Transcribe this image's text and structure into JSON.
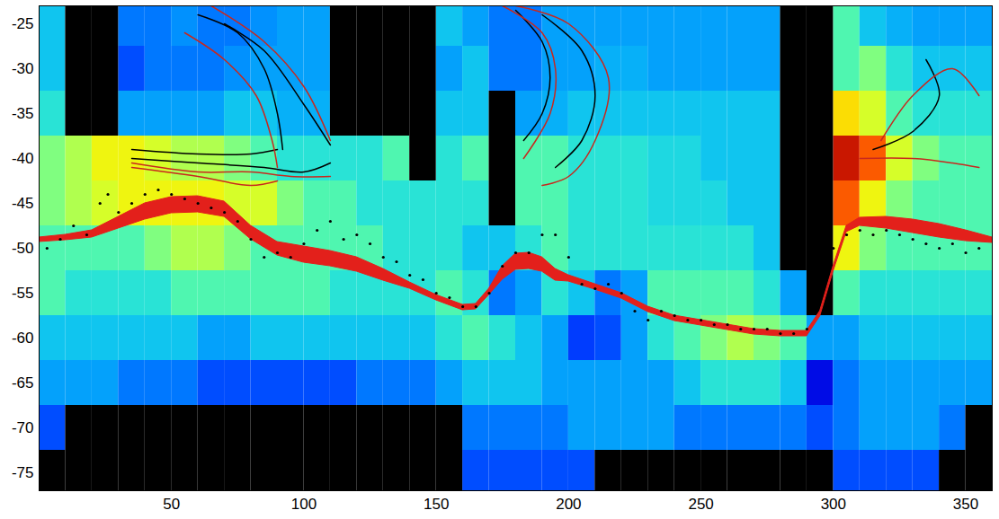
{
  "chart_data": {
    "type": "heatmap",
    "xlim": [
      0,
      360
    ],
    "ylim": [
      -77,
      -23
    ],
    "xticks": [
      50,
      100,
      150,
      200,
      250,
      300,
      350
    ],
    "yticks": [
      -75,
      -70,
      -65,
      -60,
      -55,
      -50,
      -45,
      -40,
      -35,
      -30,
      -25
    ],
    "zlim": [
      0,
      10
    ],
    "x": [
      5,
      15,
      25,
      35,
      45,
      55,
      65,
      75,
      85,
      95,
      105,
      115,
      125,
      135,
      145,
      155,
      165,
      175,
      185,
      195,
      205,
      215,
      225,
      235,
      245,
      255,
      265,
      275,
      285,
      295,
      305,
      315,
      325,
      335,
      345,
      355
    ],
    "y": [
      -25,
      -30,
      -35,
      -40,
      -45,
      -50,
      -55,
      -60,
      -65,
      -70,
      -75
    ],
    "values": [
      [
        3.5,
        null,
        null,
        2.5,
        2.5,
        2.8,
        2.5,
        2.5,
        2.8,
        3,
        3,
        null,
        null,
        null,
        null,
        3.5,
        3,
        2.5,
        2.5,
        3,
        3,
        3,
        3,
        3,
        3,
        3,
        3,
        3,
        null,
        null,
        4.5,
        3.5,
        3.2,
        3,
        3,
        3
      ],
      [
        3.5,
        null,
        null,
        2,
        2.5,
        2.5,
        2.5,
        2.8,
        3,
        3,
        3,
        null,
        null,
        null,
        null,
        3,
        3.5,
        2.5,
        2.5,
        3,
        3,
        3.2,
        3.2,
        3,
        3,
        3,
        3,
        3,
        null,
        null,
        4.5,
        5,
        4,
        3.5,
        3.5,
        3.5
      ],
      [
        4,
        null,
        null,
        3,
        3,
        3,
        3,
        3.5,
        3.5,
        3.2,
        3.2,
        null,
        null,
        null,
        null,
        3.5,
        3.5,
        null,
        3,
        3.2,
        3.5,
        3.5,
        3.5,
        3.5,
        3.5,
        3.5,
        3.5,
        3.5,
        null,
        null,
        7,
        6,
        4.5,
        4,
        4,
        4
      ],
      [
        5,
        5.5,
        6.5,
        6.5,
        6,
        5.5,
        5.5,
        5,
        4.5,
        4,
        4,
        4,
        4,
        4.5,
        null,
        4,
        4.5,
        null,
        4.5,
        4.5,
        4,
        4,
        4,
        3.8,
        3.8,
        3.5,
        3.5,
        3.5,
        null,
        null,
        9.5,
        8.5,
        6,
        5,
        4.5,
        4.5
      ],
      [
        5,
        5.5,
        6,
        6.5,
        6.5,
        6.5,
        6.5,
        6,
        6,
        5,
        4.5,
        4.5,
        4,
        4,
        4,
        4,
        4,
        null,
        4.5,
        4.5,
        4,
        4,
        4,
        3.8,
        3.8,
        3.8,
        3.5,
        3.5,
        null,
        null,
        8.5,
        6.5,
        5,
        4.5,
        4.5,
        4.5
      ],
      [
        4.5,
        4.5,
        4.5,
        4.5,
        5,
        5.5,
        5.5,
        5,
        4.5,
        4.5,
        4.5,
        4.5,
        4.5,
        4,
        4,
        4,
        3.5,
        3.5,
        4,
        4.5,
        4,
        4,
        4,
        4,
        4,
        4,
        4,
        3.5,
        null,
        null,
        6.5,
        5,
        4.5,
        4.5,
        4.5,
        4.5
      ],
      [
        4.5,
        4,
        4,
        4,
        4,
        4.5,
        4.5,
        4.5,
        4.5,
        4.5,
        4.5,
        4,
        4,
        4,
        4,
        4.5,
        4,
        2.5,
        3,
        4,
        3.5,
        2.5,
        3,
        4.5,
        4.5,
        4.5,
        4.5,
        4,
        3,
        null,
        4.5,
        4,
        4,
        4,
        4,
        4
      ],
      [
        3.5,
        3.5,
        3.5,
        3.5,
        3.5,
        3.5,
        3,
        3,
        3.5,
        3.5,
        3.5,
        3.5,
        3.5,
        3.5,
        3.5,
        4,
        4.5,
        4,
        3.5,
        3,
        1.8,
        2,
        3,
        4,
        4.5,
        5,
        5.5,
        5,
        4.5,
        3,
        3,
        3.5,
        3.5,
        3.5,
        3.5,
        3.5
      ],
      [
        3,
        3,
        3,
        2.5,
        2.5,
        2.5,
        2,
        2,
        2,
        2,
        2,
        2,
        2.5,
        2.5,
        2.5,
        3,
        3.5,
        3.5,
        3.5,
        3,
        3,
        3,
        3,
        3,
        3.5,
        4,
        4,
        4,
        3.5,
        1,
        2.5,
        3,
        3,
        3,
        3,
        3
      ],
      [
        2,
        null,
        null,
        null,
        null,
        null,
        null,
        null,
        null,
        null,
        null,
        null,
        null,
        null,
        null,
        null,
        2.5,
        2.5,
        2.5,
        2.5,
        3,
        3,
        3,
        3,
        2.5,
        2.5,
        2.5,
        2.5,
        2.5,
        2,
        2.5,
        3,
        3,
        3,
        2.5,
        null
      ],
      [
        null,
        null,
        null,
        null,
        null,
        null,
        null,
        null,
        null,
        null,
        null,
        null,
        null,
        null,
        null,
        null,
        2,
        2,
        2,
        2,
        2,
        null,
        null,
        null,
        null,
        null,
        null,
        null,
        null,
        null,
        2,
        2,
        2,
        2,
        null,
        null
      ]
    ],
    "series": [
      {
        "type": "area",
        "color": "#e3201b",
        "x": [
          0,
          10,
          20,
          30,
          40,
          50,
          60,
          70,
          80,
          90,
          100,
          110,
          120,
          130,
          140,
          150,
          160,
          165,
          170,
          175,
          180,
          185,
          190,
          195,
          200,
          210,
          220,
          230,
          240,
          250,
          260,
          270,
          280,
          290,
          295,
          300,
          305,
          310,
          320,
          330,
          340,
          350,
          360
        ],
        "y1": [
          -48.8,
          -48.5,
          -48,
          -46.5,
          -45,
          -44.3,
          -44.2,
          -44.8,
          -47.5,
          -49.3,
          -49.8,
          -50.3,
          -51,
          -52.3,
          -53.8,
          -55.2,
          -56.3,
          -56.2,
          -54.5,
          -52,
          -50.6,
          -50.5,
          -51,
          -52.3,
          -53,
          -54,
          -55,
          -56.5,
          -57.5,
          -58,
          -58.5,
          -59,
          -59.2,
          -59.2,
          -57,
          -52,
          -47.5,
          -46.6,
          -46.5,
          -46.8,
          -47.3,
          -48,
          -48.8
        ],
        "y2": [
          -49.3,
          -49.1,
          -48.8,
          -47.8,
          -46.8,
          -46.1,
          -46,
          -46.5,
          -49,
          -50.8,
          -51.6,
          -52,
          -52.6,
          -53.6,
          -54.5,
          -55.8,
          -56.9,
          -56.8,
          -55.2,
          -53.5,
          -52.4,
          -52.3,
          -52.6,
          -53.6,
          -53.7,
          -54.6,
          -55.6,
          -57.1,
          -58.1,
          -58.6,
          -59.1,
          -59.6,
          -59.8,
          -59.8,
          -57.6,
          -52.6,
          -48.2,
          -47.5,
          -47.8,
          -48.3,
          -48.8,
          -49.2,
          -49.4
        ]
      },
      {
        "type": "scatter",
        "color": "#000000",
        "marker": "circle",
        "x": [
          3,
          8,
          13,
          18,
          23,
          26,
          30,
          35,
          40,
          45,
          50,
          55,
          60,
          65,
          70,
          75,
          80,
          85,
          90,
          95,
          100,
          105,
          110,
          115,
          120,
          125,
          130,
          135,
          140,
          145,
          150,
          155,
          160,
          165,
          170,
          175,
          180,
          185,
          190,
          195,
          200,
          205,
          210,
          215,
          220,
          225,
          230,
          235,
          240,
          245,
          250,
          255,
          260,
          265,
          270,
          275,
          280,
          285,
          290,
          295,
          300,
          305,
          310,
          315,
          320,
          325,
          330,
          335,
          340,
          345,
          350,
          355
        ],
        "y": [
          -50,
          -49,
          -47.5,
          -48.5,
          -45,
          -44,
          -46,
          -45,
          -44,
          -43.5,
          -44,
          -44.5,
          -45,
          -45.5,
          -46,
          -47,
          -49,
          -51,
          -50.5,
          -51,
          -49.5,
          -48,
          -47,
          -49,
          -48.5,
          -49.5,
          -51,
          -51.5,
          -53,
          -53.5,
          -55,
          -55.5,
          -56.5,
          -56.5,
          -55,
          -52,
          -50.5,
          -50.5,
          -48.5,
          -48.5,
          -51,
          -54,
          -54.5,
          -54,
          -55,
          -57,
          -58,
          -57,
          -57.5,
          -58,
          -58,
          -58.5,
          -58.5,
          -59,
          -59,
          -59,
          -59.5,
          -59.5,
          -59,
          -55,
          -50,
          -48.5,
          -48,
          -48.5,
          -48,
          -48.5,
          -49,
          -49.5,
          -50,
          -49.5,
          -50.5,
          -50
        ]
      },
      {
        "type": "line",
        "color": "#000000",
        "x": [
          35,
          60,
          80,
          90
        ],
        "y": [
          -39,
          -39.5,
          -39.5,
          -39
        ]
      },
      {
        "type": "line",
        "color": "#000000",
        "x": [
          35,
          60,
          85,
          100,
          110
        ],
        "y": [
          -40,
          -40.5,
          -41,
          -41.5,
          -40.5
        ]
      },
      {
        "type": "line",
        "color": "#c8281e",
        "x": [
          35,
          60,
          80,
          95,
          110
        ],
        "y": [
          -40.5,
          -41.5,
          -41.5,
          -42,
          -42
        ]
      },
      {
        "type": "line",
        "color": "#c8281e",
        "x": [
          35,
          60,
          80,
          90
        ],
        "y": [
          -41,
          -42,
          -43,
          -42.5
        ]
      },
      {
        "type": "line",
        "color": "#000000",
        "x": [
          60,
          75,
          85,
          90,
          92
        ],
        "y": [
          -24,
          -26,
          -30,
          -35,
          -39
        ]
      },
      {
        "type": "line",
        "color": "#000000",
        "x": [
          70,
          85,
          100,
          110
        ],
        "y": [
          -25,
          -28,
          -34,
          -38.5
        ]
      },
      {
        "type": "line",
        "color": "#c8281e",
        "x": [
          55,
          70,
          82,
          88,
          90
        ],
        "y": [
          -26,
          -29,
          -33,
          -38,
          -41
        ]
      },
      {
        "type": "line",
        "color": "#c8281e",
        "x": [
          65,
          85,
          100,
          110
        ],
        "y": [
          -23,
          -27,
          -32,
          -38
        ]
      },
      {
        "type": "line",
        "color": "#000000",
        "x": [
          180,
          190,
          193,
          190,
          183
        ],
        "y": [
          -23.5,
          -27,
          -31,
          -35,
          -38
        ]
      },
      {
        "type": "line",
        "color": "#000000",
        "x": [
          190,
          205,
          210,
          205,
          195
        ],
        "y": [
          -24,
          -28,
          -33,
          -38,
          -41
        ]
      },
      {
        "type": "line",
        "color": "#c8281e",
        "x": [
          175,
          190,
          195,
          193,
          183
        ],
        "y": [
          -23,
          -26,
          -30,
          -35,
          -40
        ]
      },
      {
        "type": "line",
        "color": "#c8281e",
        "x": [
          180,
          200,
          215,
          210,
          200,
          190
        ],
        "y": [
          -23,
          -25,
          -31,
          -38,
          -42,
          -43
        ]
      },
      {
        "type": "line",
        "color": "#000000",
        "x": [
          315,
          330,
          340,
          335
        ],
        "y": [
          -39,
          -37,
          -33,
          -29
        ]
      },
      {
        "type": "line",
        "color": "#c8281e",
        "x": [
          310,
          330,
          345,
          355
        ],
        "y": [
          -40,
          -40,
          -40.5,
          -41
        ]
      },
      {
        "type": "line",
        "color": "#c8281e",
        "x": [
          318,
          330,
          345,
          355
        ],
        "y": [
          -38,
          -33,
          -30,
          -33
        ]
      }
    ]
  }
}
